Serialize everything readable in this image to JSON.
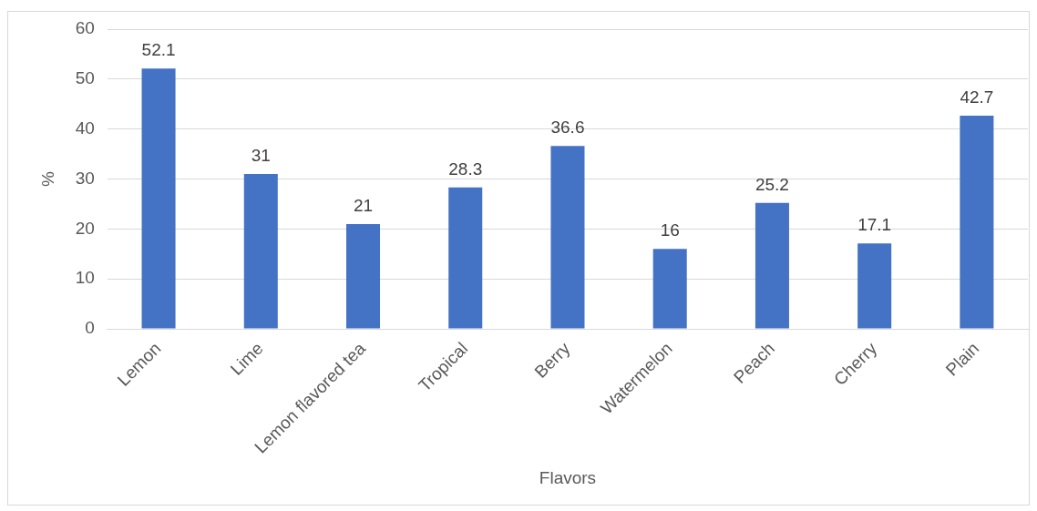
{
  "chart_data": {
    "type": "bar",
    "xlabel": "Flavors",
    "ylabel": "%",
    "categories": [
      "Lemon",
      "Lime",
      "Lemon flavored tea",
      "Tropical",
      "Berry",
      "Watermelon",
      "Peach",
      "Cherry",
      "Plain"
    ],
    "values": [
      52.1,
      31,
      21,
      28.3,
      36.6,
      16,
      25.2,
      17.1,
      42.7
    ],
    "color": "#4472c4",
    "ylim": [
      0,
      60
    ],
    "yticks": [
      0,
      10,
      20,
      30,
      40,
      50,
      60
    ],
    "grid": "y",
    "data_labels": true,
    "legend": false
  }
}
